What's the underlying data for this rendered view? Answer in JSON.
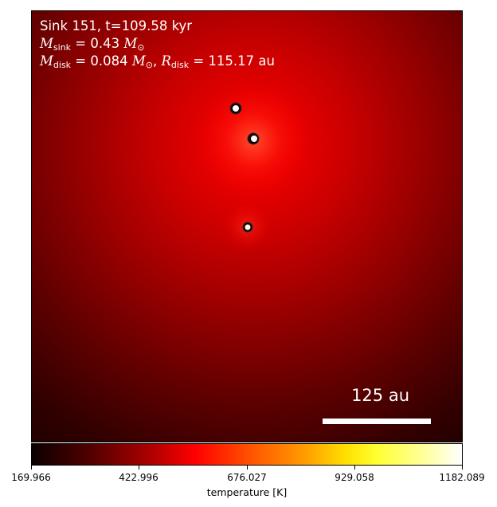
{
  "info": {
    "title": "Sink 151, t=109.58 kyr",
    "m_sink_symbol": "M",
    "m_sink_sub": "sink",
    "m_sink_value": "= 0.43",
    "m_disk_symbol": "M",
    "m_disk_sub": "disk",
    "m_disk_value": "= 0.084",
    "r_disk_symbol": "R",
    "r_disk_sub": "disk",
    "r_disk_value": "= 115.17 au",
    "sun_symbol": "⊙"
  },
  "scale_bar": {
    "label": "125 au"
  },
  "colorbar": {
    "label": "temperature [K]",
    "ticks": [
      "169.966",
      "422.996",
      "676.027",
      "929.058",
      "1182.089"
    ],
    "colors": [
      "#0b0000",
      "#5a0000",
      "#b00000",
      "#ff0000",
      "#ff5a00",
      "#ffa000",
      "#ffe000",
      "#ffff30",
      "#ffff90",
      "#ffffff"
    ]
  },
  "sinks": [
    {
      "name": "sink-upper"
    },
    {
      "name": "sink-middle"
    },
    {
      "name": "sink-lower"
    }
  ]
}
